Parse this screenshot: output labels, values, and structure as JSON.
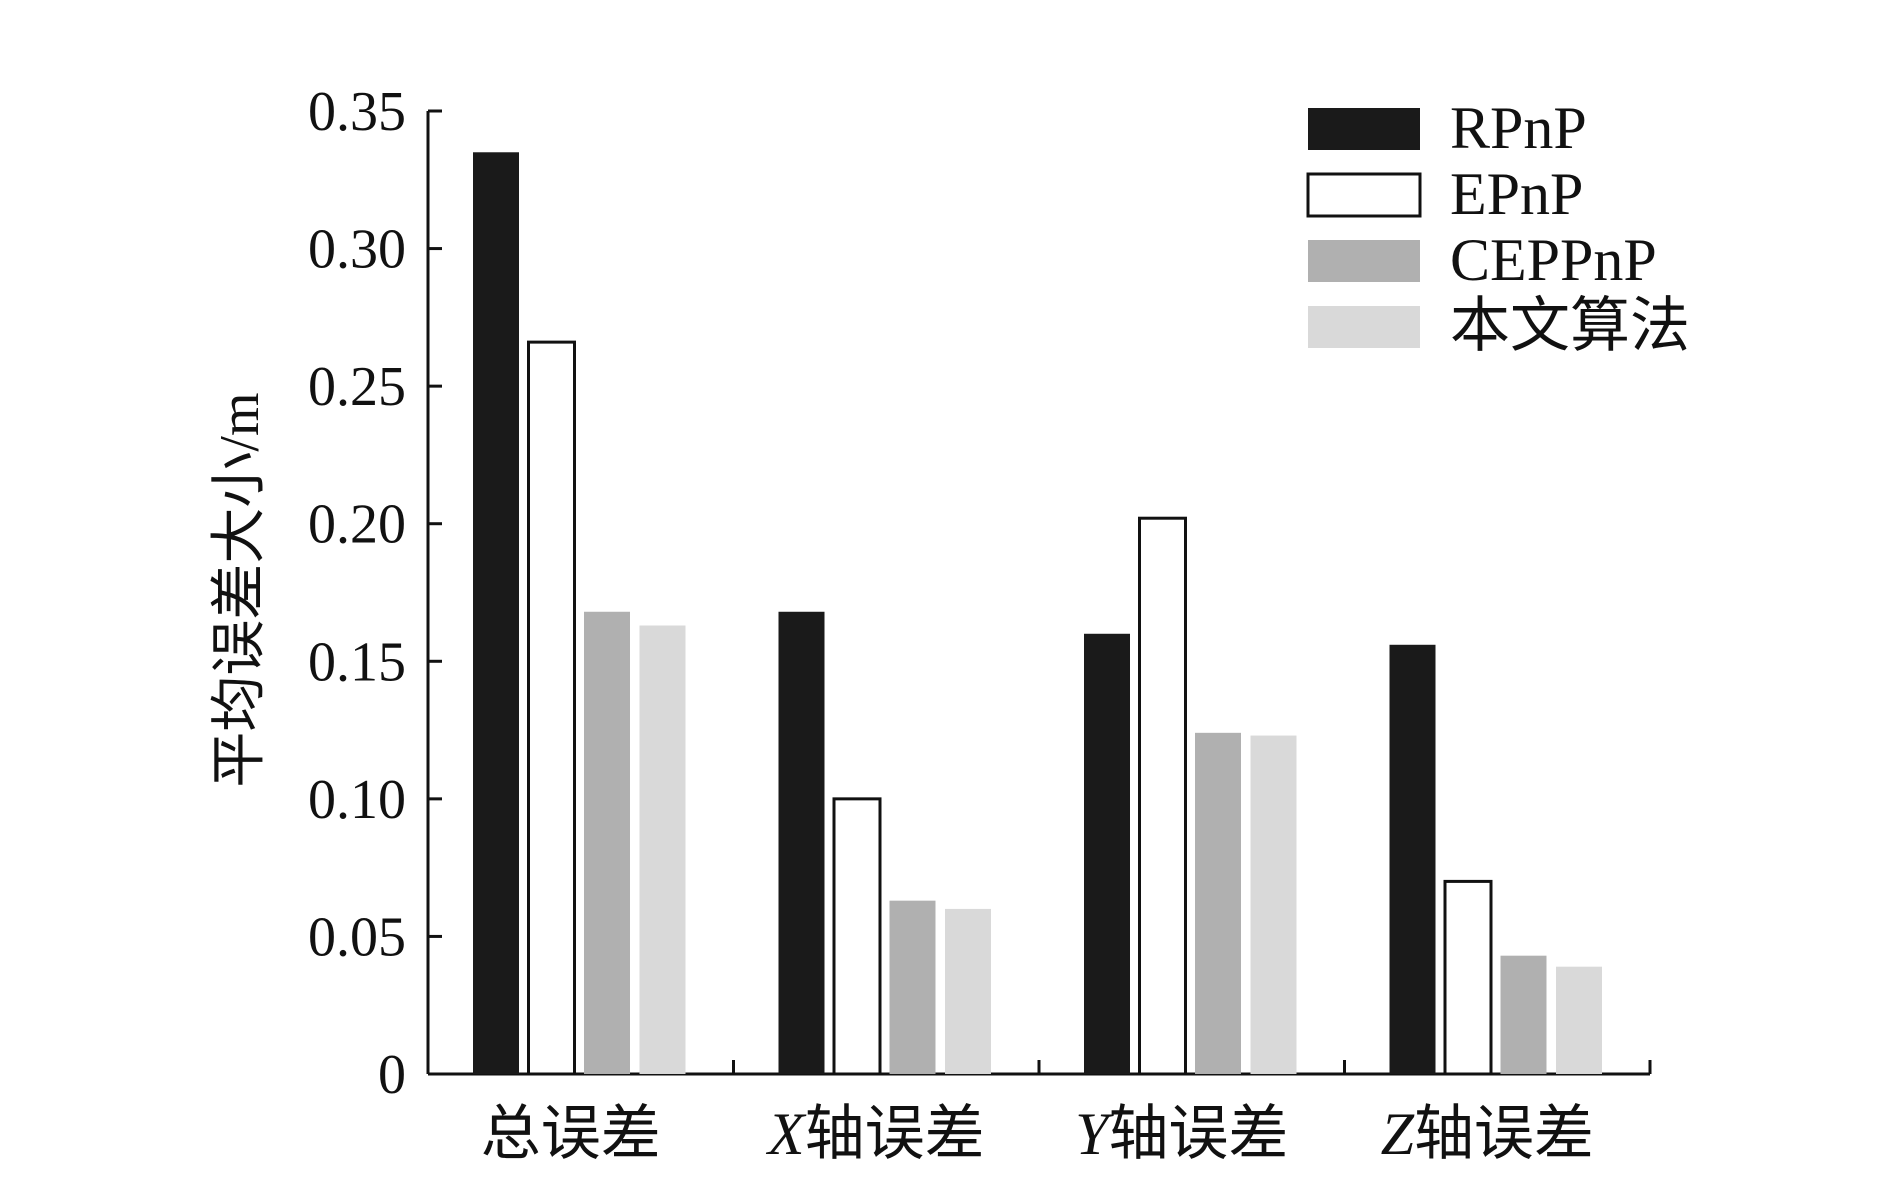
{
  "chart_data": {
    "type": "bar",
    "title": "",
    "xlabel": "",
    "ylabel": "平均误差大小/m",
    "ylim": [
      0,
      0.35
    ],
    "yticks": [
      "0",
      "0.05",
      "0.10",
      "0.15",
      "0.20",
      "0.25",
      "0.30",
      "0.35"
    ],
    "categories": [
      {
        "prefix": "",
        "text": "总误差"
      },
      {
        "prefix": "X",
        "text": "轴误差"
      },
      {
        "prefix": "Y",
        "text": "轴误差"
      },
      {
        "prefix": "Z",
        "text": "轴误差"
      }
    ],
    "series": [
      {
        "name": "RPnP",
        "color": "#1a1a1a",
        "outline": false,
        "values": [
          0.335,
          0.168,
          0.16,
          0.156
        ]
      },
      {
        "name": "EPnP",
        "color": "#ffffff",
        "outline": true,
        "values": [
          0.266,
          0.1,
          0.202,
          0.07
        ]
      },
      {
        "name": "CEPPnP",
        "color": "#b0b0b0",
        "outline": false,
        "values": [
          0.168,
          0.063,
          0.124,
          0.043
        ]
      },
      {
        "name": "本文算法",
        "color": "#d9d9d9",
        "outline": false,
        "values": [
          0.163,
          0.06,
          0.123,
          0.039
        ]
      }
    ],
    "legend_position": "top-right",
    "grid": false
  }
}
